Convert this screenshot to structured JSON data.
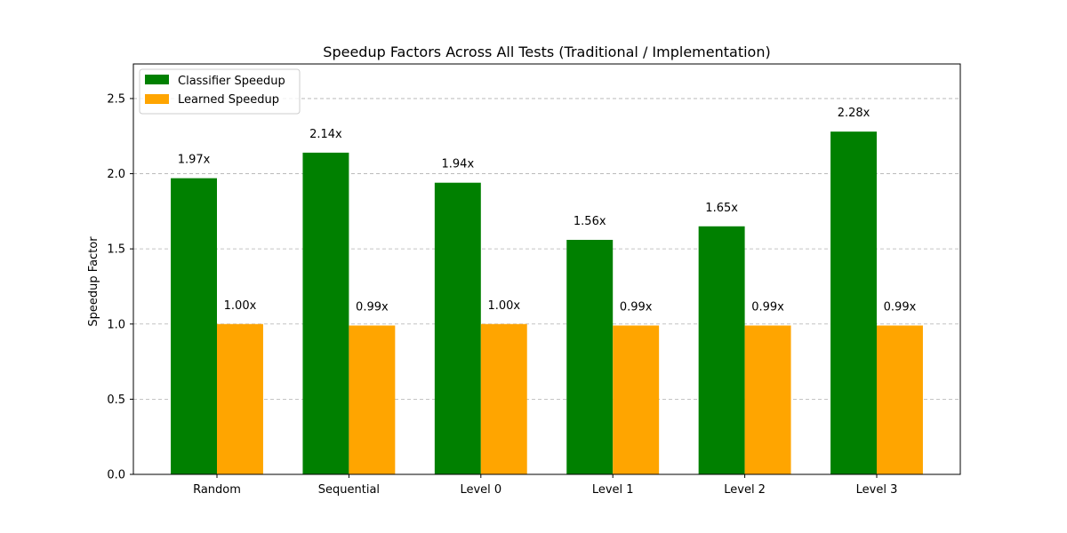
{
  "chart_data": {
    "type": "bar",
    "title": "Speedup Factors Across All Tests (Traditional / Implementation)",
    "xlabel": "",
    "ylabel": "Speedup Factor",
    "categories": [
      "Random",
      "Sequential",
      "Level 0",
      "Level 1",
      "Level 2",
      "Level 3"
    ],
    "series": [
      {
        "name": "Classifier Speedup",
        "color": "#008000",
        "values": [
          1.97,
          2.14,
          1.94,
          1.56,
          1.65,
          2.28
        ],
        "labels": [
          "1.97x",
          "2.14x",
          "1.94x",
          "1.56x",
          "1.65x",
          "2.28x"
        ]
      },
      {
        "name": "Learned Speedup",
        "color": "#ffa500",
        "values": [
          1.0,
          0.99,
          1.0,
          0.99,
          0.99,
          0.99
        ],
        "labels": [
          "1.00x",
          "0.99x",
          "1.00x",
          "0.99x",
          "0.99x",
          "0.99x"
        ]
      }
    ],
    "ylim": [
      0,
      2.73
    ],
    "yticks": [
      0.0,
      0.5,
      1.0,
      1.5,
      2.0,
      2.5
    ],
    "ytick_labels": [
      "0.0",
      "0.5",
      "1.0",
      "1.5",
      "2.0",
      "2.5"
    ],
    "grid": "y-dashed",
    "legend_position": "top-left"
  }
}
